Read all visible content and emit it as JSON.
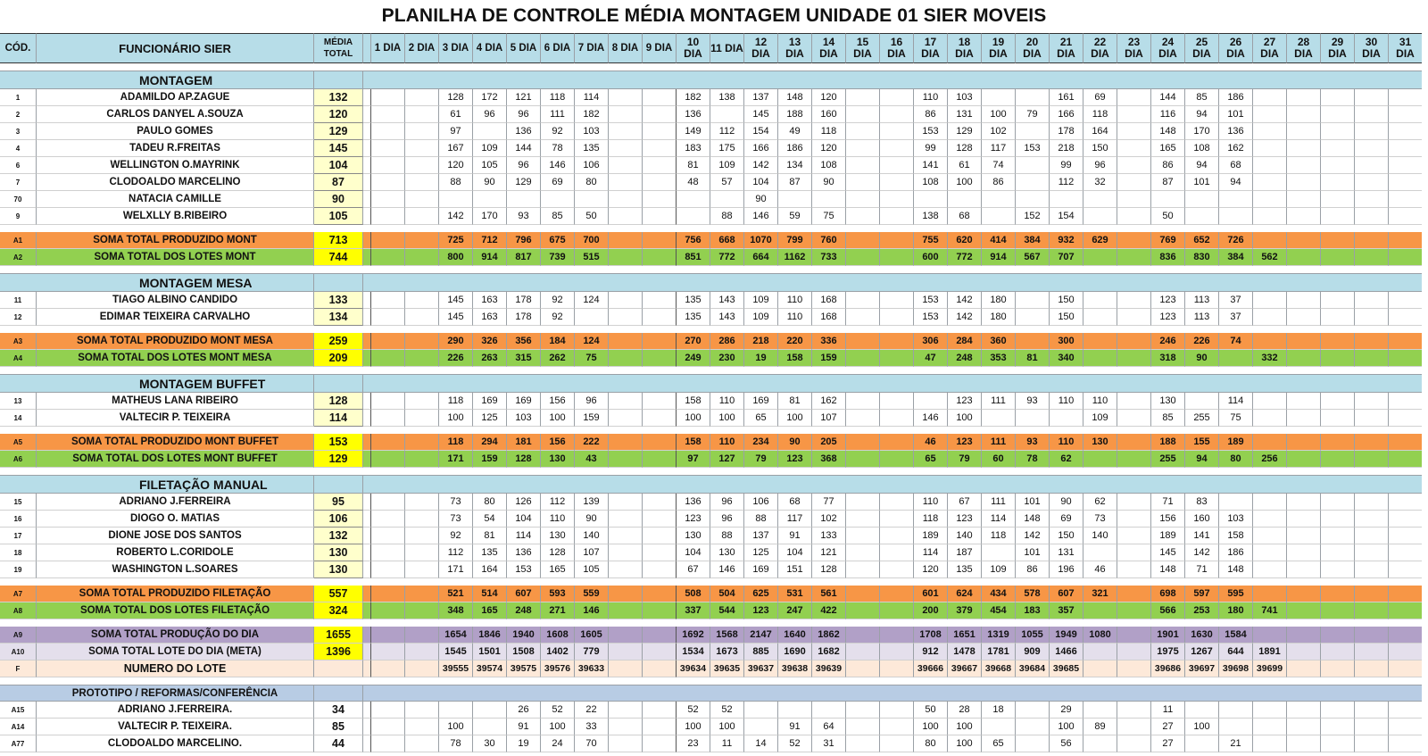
{
  "title": "PLANILHA DE CONTROLE MÉDIA MONTAGEM UNIDADE 01 SIER MOVEIS",
  "header": {
    "code": "CÓD.",
    "employee": "FUNCIONÁRIO SIER",
    "media": "MÉDIA TOTAL",
    "days": [
      "1 DIA",
      "2 DIA",
      "3 DIA",
      "4 DIA",
      "5 DIA",
      "6 DIA",
      "7 DIA",
      "8 DIA",
      "9 DIA",
      "10 DIA",
      "11 DIA",
      "12 DIA",
      "13 DIA",
      "14 DIA",
      "15 DIA",
      "16 DIA",
      "17 DIA",
      "18 DIA",
      "19 DIA",
      "20 DIA",
      "21 DIA",
      "22 DIA",
      "23 DIA",
      "24 DIA",
      "25 DIA",
      "26 DIA",
      "27 DIA",
      "28 DIA",
      "29 DIA",
      "30 DIA",
      "31 DIA"
    ]
  },
  "colors": {
    "header": "#b7dde8",
    "media": "#ffffcc",
    "orange": "#f79646",
    "green": "#92d050",
    "yellow": "#ffff00",
    "purple": "#b1a0c7",
    "lavender": "#e4dfec",
    "peach": "#fde9d9",
    "proto": "#b8cce4"
  },
  "rows": [
    {
      "type": "sec",
      "label": "MONTAGEM"
    },
    {
      "type": "emp",
      "code": "1",
      "name": "ADAMILDO AP.ZAGUE",
      "media": "132",
      "days": [
        "",
        "",
        "128",
        "172",
        "121",
        "118",
        "114",
        "",
        "",
        "182",
        "138",
        "137",
        "148",
        "120",
        "",
        "",
        "110",
        "103",
        "",
        "",
        "161",
        "69",
        "",
        "144",
        "85",
        "186",
        "",
        "",
        "",
        "",
        ""
      ]
    },
    {
      "type": "emp",
      "code": "2",
      "name": "CARLOS DANYEL A.SOUZA",
      "media": "120",
      "days": [
        "",
        "",
        "61",
        "96",
        "96",
        "111",
        "182",
        "",
        "",
        "136",
        "",
        "145",
        "188",
        "160",
        "",
        "",
        "86",
        "131",
        "100",
        "79",
        "166",
        "118",
        "",
        "116",
        "94",
        "101",
        "",
        "",
        "",
        "",
        ""
      ]
    },
    {
      "type": "emp",
      "code": "3",
      "name": "PAULO GOMES",
      "media": "129",
      "days": [
        "",
        "",
        "97",
        "",
        "136",
        "92",
        "103",
        "",
        "",
        "149",
        "112",
        "154",
        "49",
        "118",
        "",
        "",
        "153",
        "129",
        "102",
        "",
        "178",
        "164",
        "",
        "148",
        "170",
        "136",
        "",
        "",
        "",
        "",
        ""
      ]
    },
    {
      "type": "emp",
      "code": "4",
      "name": "TADEU R.FREITAS",
      "media": "145",
      "days": [
        "",
        "",
        "167",
        "109",
        "144",
        "78",
        "135",
        "",
        "",
        "183",
        "175",
        "166",
        "186",
        "120",
        "",
        "",
        "99",
        "128",
        "117",
        "153",
        "218",
        "150",
        "",
        "165",
        "108",
        "162",
        "",
        "",
        "",
        "",
        ""
      ]
    },
    {
      "type": "emp",
      "code": "6",
      "name": "WELLINGTON O.MAYRINK",
      "media": "104",
      "days": [
        "",
        "",
        "120",
        "105",
        "96",
        "146",
        "106",
        "",
        "",
        "81",
        "109",
        "142",
        "134",
        "108",
        "",
        "",
        "141",
        "61",
        "74",
        "",
        "99",
        "96",
        "",
        "86",
        "94",
        "68",
        "",
        "",
        "",
        "",
        ""
      ]
    },
    {
      "type": "emp",
      "code": "7",
      "name": "CLODOALDO MARCELINO",
      "media": "87",
      "days": [
        "",
        "",
        "88",
        "90",
        "129",
        "69",
        "80",
        "",
        "",
        "48",
        "57",
        "104",
        "87",
        "90",
        "",
        "",
        "108",
        "100",
        "86",
        "",
        "112",
        "32",
        "",
        "87",
        "101",
        "94",
        "",
        "",
        "",
        "",
        ""
      ]
    },
    {
      "type": "emp",
      "code": "70",
      "name": "NATACIA CAMILLE",
      "media": "90",
      "days": [
        "",
        "",
        "",
        "",
        "",
        "",
        "",
        "",
        "",
        "",
        "",
        "90",
        "",
        "",
        "",
        "",
        "",
        "",
        "",
        "",
        "",
        "",
        "",
        "",
        "",
        "",
        "",
        "",
        "",
        "",
        ""
      ]
    },
    {
      "type": "emp",
      "code": "9",
      "name": "WELXLLY B.RIBEIRO",
      "media": "105",
      "days": [
        "",
        "",
        "142",
        "170",
        "93",
        "85",
        "50",
        "",
        "",
        "",
        "88",
        "146",
        "59",
        "75",
        "",
        "",
        "138",
        "68",
        "",
        "152",
        "154",
        "",
        "",
        "50",
        "",
        "",
        "",
        "",
        "",
        "",
        ""
      ]
    },
    {
      "type": "gap"
    },
    {
      "type": "orange",
      "code": "A1",
      "name": "SOMA TOTAL PRODUZIDO MONT",
      "media": "713",
      "days": [
        "",
        "",
        "725",
        "712",
        "796",
        "675",
        "700",
        "",
        "",
        "756",
        "668",
        "1070",
        "799",
        "760",
        "",
        "",
        "755",
        "620",
        "414",
        "384",
        "932",
        "629",
        "",
        "769",
        "652",
        "726",
        "",
        "",
        "",
        "",
        ""
      ]
    },
    {
      "type": "green",
      "code": "A2",
      "name": "SOMA TOTAL DOS LOTES MONT",
      "media": "744",
      "days": [
        "",
        "",
        "800",
        "914",
        "817",
        "739",
        "515",
        "",
        "",
        "851",
        "772",
        "664",
        "1162",
        "733",
        "",
        "",
        "600",
        "772",
        "914",
        "567",
        "707",
        "",
        "",
        "836",
        "830",
        "384",
        "562",
        "",
        "",
        "",
        ""
      ]
    },
    {
      "type": "gap"
    },
    {
      "type": "sec",
      "label": "MONTAGEM MESA"
    },
    {
      "type": "emp",
      "code": "11",
      "name": "TIAGO ALBINO CANDIDO",
      "media": "133",
      "days": [
        "",
        "",
        "145",
        "163",
        "178",
        "92",
        "124",
        "",
        "",
        "135",
        "143",
        "109",
        "110",
        "168",
        "",
        "",
        "153",
        "142",
        "180",
        "",
        "150",
        "",
        "",
        "123",
        "113",
        "37",
        "",
        "",
        "",
        "",
        ""
      ]
    },
    {
      "type": "emp",
      "code": "12",
      "name": "EDIMAR TEIXEIRA CARVALHO",
      "media": "134",
      "days": [
        "",
        "",
        "145",
        "163",
        "178",
        "92",
        "",
        "",
        "",
        "135",
        "143",
        "109",
        "110",
        "168",
        "",
        "",
        "153",
        "142",
        "180",
        "",
        "150",
        "",
        "",
        "123",
        "113",
        "37",
        "",
        "",
        "",
        "",
        ""
      ]
    },
    {
      "type": "gap"
    },
    {
      "type": "orange",
      "code": "A3",
      "name": "SOMA TOTAL PRODUZIDO MONT MESA",
      "media": "259",
      "days": [
        "",
        "",
        "290",
        "326",
        "356",
        "184",
        "124",
        "",
        "",
        "270",
        "286",
        "218",
        "220",
        "336",
        "",
        "",
        "306",
        "284",
        "360",
        "",
        "300",
        "",
        "",
        "246",
        "226",
        "74",
        "",
        "",
        "",
        "",
        ""
      ]
    },
    {
      "type": "green",
      "code": "A4",
      "name": "SOMA TOTAL DOS LOTES MONT MESA",
      "media": "209",
      "days": [
        "",
        "",
        "226",
        "263",
        "315",
        "262",
        "75",
        "",
        "",
        "249",
        "230",
        "19",
        "158",
        "159",
        "",
        "",
        "47",
        "248",
        "353",
        "81",
        "340",
        "",
        "",
        "318",
        "90",
        "",
        "332",
        "",
        "",
        "",
        ""
      ]
    },
    {
      "type": "gap"
    },
    {
      "type": "sec",
      "label": "MONTAGEM BUFFET"
    },
    {
      "type": "emp",
      "code": "13",
      "name": "MATHEUS LANA RIBEIRO",
      "media": "128",
      "days": [
        "",
        "",
        "118",
        "169",
        "169",
        "156",
        "96",
        "",
        "",
        "158",
        "110",
        "169",
        "81",
        "162",
        "",
        "",
        "",
        "123",
        "111",
        "93",
        "110",
        "110",
        "",
        "130",
        "",
        "114",
        "",
        "",
        "",
        "",
        ""
      ]
    },
    {
      "type": "emp",
      "code": "14",
      "name": "VALTECIR P. TEIXEIRA",
      "media": "114",
      "days": [
        "",
        "",
        "100",
        "125",
        "103",
        "100",
        "159",
        "",
        "",
        "100",
        "100",
        "65",
        "100",
        "107",
        "",
        "",
        "146",
        "100",
        "",
        "",
        "",
        "109",
        "",
        "85",
        "255",
        "75",
        "",
        "",
        "",
        "",
        ""
      ]
    },
    {
      "type": "gap"
    },
    {
      "type": "orange",
      "code": "A5",
      "name": "SOMA TOTAL PRODUZIDO MONT BUFFET",
      "media": "153",
      "days": [
        "",
        "",
        "118",
        "294",
        "181",
        "156",
        "222",
        "",
        "",
        "158",
        "110",
        "234",
        "90",
        "205",
        "",
        "",
        "46",
        "123",
        "111",
        "93",
        "110",
        "130",
        "",
        "188",
        "155",
        "189",
        "",
        "",
        "",
        "",
        ""
      ]
    },
    {
      "type": "green",
      "code": "A6",
      "name": "SOMA TOTAL DOS LOTES MONT BUFFET",
      "media": "129",
      "days": [
        "",
        "",
        "171",
        "159",
        "128",
        "130",
        "43",
        "",
        "",
        "97",
        "127",
        "79",
        "123",
        "368",
        "",
        "",
        "65",
        "79",
        "60",
        "78",
        "62",
        "",
        "",
        "255",
        "94",
        "80",
        "256",
        "",
        "",
        "",
        ""
      ]
    },
    {
      "type": "gap"
    },
    {
      "type": "sec",
      "label": "FILETAÇÃO MANUAL"
    },
    {
      "type": "emp",
      "code": "15",
      "name": "ADRIANO J.FERREIRA",
      "media": "95",
      "days": [
        "",
        "",
        "73",
        "80",
        "126",
        "112",
        "139",
        "",
        "",
        "136",
        "96",
        "106",
        "68",
        "77",
        "",
        "",
        "110",
        "67",
        "111",
        "101",
        "90",
        "62",
        "",
        "71",
        "83",
        "",
        "",
        "",
        "",
        "",
        ""
      ]
    },
    {
      "type": "emp",
      "code": "16",
      "name": "DIOGO O. MATIAS",
      "media": "106",
      "days": [
        "",
        "",
        "73",
        "54",
        "104",
        "110",
        "90",
        "",
        "",
        "123",
        "96",
        "88",
        "117",
        "102",
        "",
        "",
        "118",
        "123",
        "114",
        "148",
        "69",
        "73",
        "",
        "156",
        "160",
        "103",
        "",
        "",
        "",
        "",
        ""
      ]
    },
    {
      "type": "emp",
      "code": "17",
      "name": "DIONE  JOSE DOS SANTOS",
      "media": "132",
      "days": [
        "",
        "",
        "92",
        "81",
        "114",
        "130",
        "140",
        "",
        "",
        "130",
        "88",
        "137",
        "91",
        "133",
        "",
        "",
        "189",
        "140",
        "118",
        "142",
        "150",
        "140",
        "",
        "189",
        "141",
        "158",
        "",
        "",
        "",
        "",
        ""
      ]
    },
    {
      "type": "emp",
      "code": "18",
      "name": "ROBERTO L.CORIDOLE",
      "media": "130",
      "days": [
        "",
        "",
        "112",
        "135",
        "136",
        "128",
        "107",
        "",
        "",
        "104",
        "130",
        "125",
        "104",
        "121",
        "",
        "",
        "114",
        "187",
        "",
        "101",
        "131",
        "",
        "",
        "145",
        "142",
        "186",
        "",
        "",
        "",
        "",
        ""
      ]
    },
    {
      "type": "emp",
      "code": "19",
      "name": "WASHINGTON L.SOARES",
      "media": "130",
      "days": [
        "",
        "",
        "171",
        "164",
        "153",
        "165",
        "105",
        "",
        "",
        "67",
        "146",
        "169",
        "151",
        "128",
        "",
        "",
        "120",
        "135",
        "109",
        "86",
        "196",
        "46",
        "",
        "148",
        "71",
        "148",
        "",
        "",
        "",
        "",
        ""
      ]
    },
    {
      "type": "gap"
    },
    {
      "type": "orange",
      "code": "A7",
      "name": "SOMA TOTAL PRODUZIDO FILETAÇÃO",
      "media": "557",
      "days": [
        "",
        "",
        "521",
        "514",
        "607",
        "593",
        "559",
        "",
        "",
        "508",
        "504",
        "625",
        "531",
        "561",
        "",
        "",
        "601",
        "624",
        "434",
        "578",
        "607",
        "321",
        "",
        "698",
        "597",
        "595",
        "",
        "",
        "",
        "",
        ""
      ]
    },
    {
      "type": "green",
      "code": "A8",
      "name": "SOMA TOTAL DOS LOTES FILETAÇÃO",
      "media": "324",
      "days": [
        "",
        "",
        "348",
        "165",
        "248",
        "271",
        "146",
        "",
        "",
        "337",
        "544",
        "123",
        "247",
        "422",
        "",
        "",
        "200",
        "379",
        "454",
        "183",
        "357",
        "",
        "",
        "566",
        "253",
        "180",
        "741",
        "",
        "",
        "",
        ""
      ]
    },
    {
      "type": "gap"
    },
    {
      "type": "purple",
      "code": "A9",
      "name": "SOMA TOTAL PRODUÇÃO DO DIA",
      "media": "1655",
      "days": [
        "",
        "",
        "1654",
        "1846",
        "1940",
        "1608",
        "1605",
        "",
        "",
        "1692",
        "1568",
        "2147",
        "1640",
        "1862",
        "",
        "",
        "1708",
        "1651",
        "1319",
        "1055",
        "1949",
        "1080",
        "",
        "1901",
        "1630",
        "1584",
        "",
        "",
        "",
        "",
        ""
      ]
    },
    {
      "type": "lavender",
      "code": "A10",
      "name": "SOMA TOTAL LOTE DO DIA (META)",
      "media": "1396",
      "days": [
        "",
        "",
        "1545",
        "1501",
        "1508",
        "1402",
        "779",
        "",
        "",
        "1534",
        "1673",
        "885",
        "1690",
        "1682",
        "",
        "",
        "912",
        "1478",
        "1781",
        "909",
        "1466",
        "",
        "",
        "1975",
        "1267",
        "644",
        "1891",
        "",
        "",
        "",
        ""
      ]
    },
    {
      "type": "peach",
      "code": "F",
      "name": "NUMERO DO LOTE",
      "media": "",
      "days": [
        "",
        "",
        "39555",
        "39574",
        "39575",
        "39576",
        "39633",
        "",
        "",
        "39634",
        "39635",
        "39637",
        "39638",
        "39639",
        "",
        "",
        "39666",
        "39667",
        "39668",
        "39684",
        "39685",
        "",
        "",
        "39686",
        "39697",
        "39698",
        "39699",
        "",
        "",
        "",
        ""
      ]
    },
    {
      "type": "gap"
    },
    {
      "type": "proto",
      "label": "PROTOTIPO / REFORMAS/CONFERÊNCIA"
    },
    {
      "type": "pemp",
      "code": "A15",
      "name": "ADRIANO J.FERREIRA.",
      "media": "34",
      "days": [
        "",
        "",
        "",
        "",
        "26",
        "52",
        "22",
        "",
        "",
        "52",
        "52",
        "",
        "",
        "",
        "",
        "",
        "50",
        "28",
        "18",
        "",
        "29",
        "",
        "",
        "11",
        "",
        "",
        "",
        "",
        "",
        "",
        ""
      ]
    },
    {
      "type": "pemp",
      "code": "A14",
      "name": "VALTECIR P. TEIXEIRA.",
      "media": "85",
      "days": [
        "",
        "",
        "100",
        "",
        "91",
        "100",
        "33",
        "",
        "",
        "100",
        "100",
        "",
        "91",
        "64",
        "",
        "",
        "100",
        "100",
        "",
        "",
        "100",
        "89",
        "",
        "27",
        "100",
        "",
        "",
        "",
        "",
        "",
        ""
      ]
    },
    {
      "type": "pemp",
      "code": "A77",
      "name": "CLODOALDO MARCELINO.",
      "media": "44",
      "days": [
        "",
        "",
        "78",
        "30",
        "19",
        "24",
        "70",
        "",
        "",
        "23",
        "11",
        "14",
        "52",
        "31",
        "",
        "",
        "80",
        "100",
        "65",
        "",
        "56",
        "",
        "",
        "27",
        "",
        "21",
        "",
        "",
        "",
        "",
        ""
      ]
    }
  ]
}
